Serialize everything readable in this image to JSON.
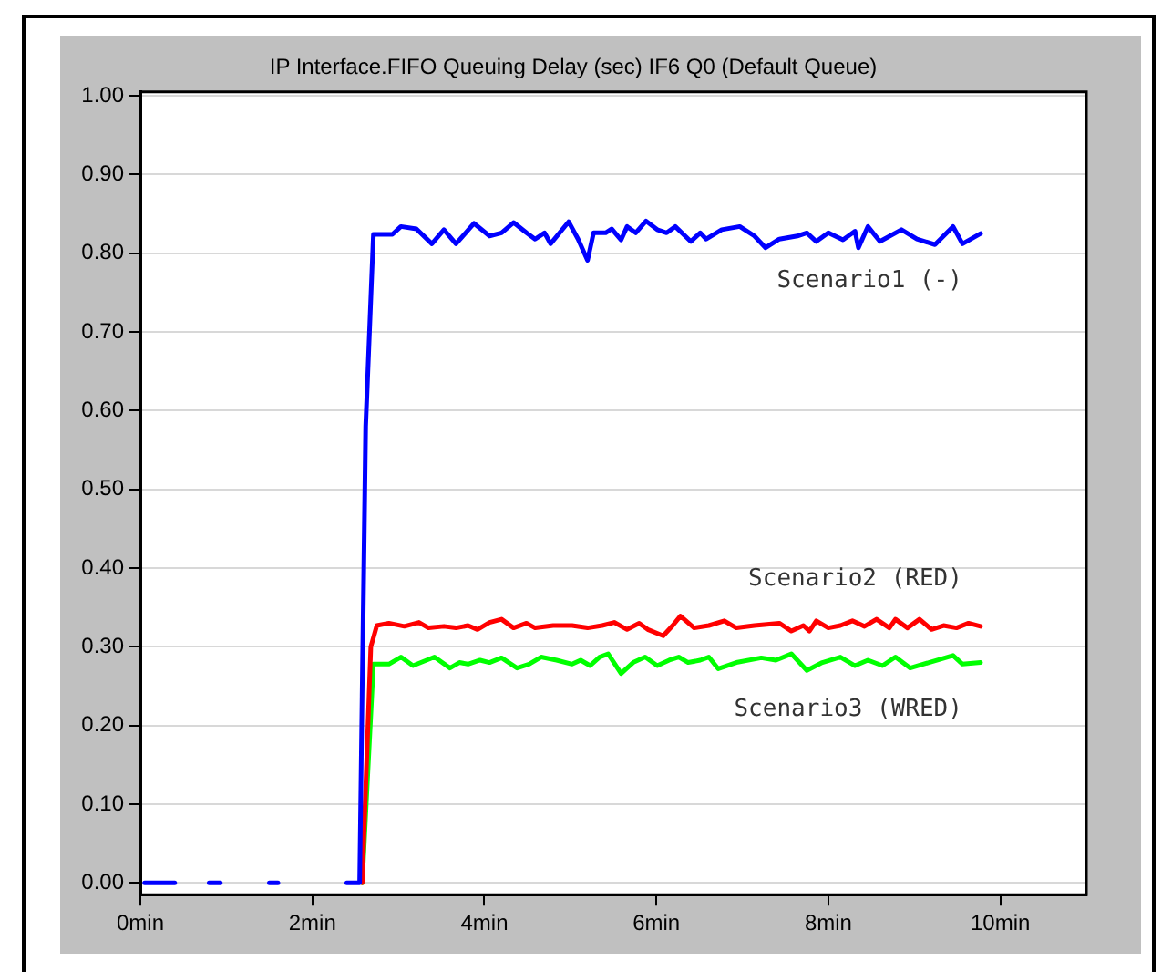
{
  "chart_data": {
    "type": "line",
    "title": "IP Interface.FIFO Queuing Delay (sec) IF6 Q0 (Default Queue)",
    "xlim": [
      0,
      11
    ],
    "xticks": [
      {
        "value": 0,
        "label": "0min"
      },
      {
        "value": 2,
        "label": "2min"
      },
      {
        "value": 4,
        "label": "4min"
      },
      {
        "value": 6,
        "label": "6min"
      },
      {
        "value": 8,
        "label": "8min"
      },
      {
        "value": 10,
        "label": "10min"
      }
    ],
    "ylim": [
      -0.015,
      1.005
    ],
    "yticks": [
      {
        "value": 0,
        "label": "0.00"
      },
      {
        "value": 0.1,
        "label": "0.10"
      },
      {
        "value": 0.2,
        "label": "0.20"
      },
      {
        "value": 0.3,
        "label": "0.30"
      },
      {
        "value": 0.4,
        "label": "0.40"
      },
      {
        "value": 0.5,
        "label": "0.50"
      },
      {
        "value": 0.6,
        "label": "0.60"
      },
      {
        "value": 0.7,
        "label": "0.70"
      },
      {
        "value": 0.8,
        "label": "0.80"
      },
      {
        "value": 0.9,
        "label": "0.90"
      },
      {
        "value": 1,
        "label": "1.00"
      }
    ],
    "grid": "y",
    "legend": false,
    "marker": "none",
    "line_style": "solid",
    "series": [
      {
        "name": "Scenario1 (-)",
        "color": "#0000ff",
        "x": [
          0.05,
          0.4,
          0.6,
          0.8,
          0.93,
          1.2,
          1.5,
          1.6,
          2.0,
          2.4,
          2.55,
          2.62,
          2.71,
          2.93,
          3.03,
          3.21,
          3.39,
          3.53,
          3.67,
          3.88,
          4.06,
          4.2,
          4.34,
          4.49,
          4.59,
          4.7,
          4.77,
          4.98,
          5.09,
          5.2,
          5.27,
          5.41,
          5.48,
          5.59,
          5.66,
          5.76,
          5.88,
          6.01,
          6.12,
          6.22,
          6.4,
          6.51,
          6.58,
          6.76,
          6.97,
          7.14,
          7.27,
          7.43,
          7.64,
          7.75,
          7.86,
          8.0,
          8.17,
          8.31,
          8.35,
          8.46,
          8.6,
          8.85,
          9.03,
          9.24,
          9.45,
          9.56,
          9.77
        ],
        "values": [
          0,
          0,
          null,
          0,
          0,
          null,
          0,
          0,
          null,
          0,
          0,
          0.58,
          0.824,
          0.824,
          0.834,
          0.831,
          0.812,
          0.83,
          0.812,
          0.838,
          0.822,
          0.826,
          0.839,
          0.826,
          0.818,
          0.826,
          0.812,
          0.84,
          0.818,
          0.791,
          0.826,
          0.826,
          0.831,
          0.817,
          0.834,
          0.826,
          0.841,
          0.83,
          0.826,
          0.834,
          0.815,
          0.826,
          0.818,
          0.83,
          0.834,
          0.822,
          0.807,
          0.818,
          0.822,
          0.826,
          0.815,
          0.826,
          0.817,
          0.828,
          0.807,
          0.834,
          0.815,
          0.83,
          0.818,
          0.811,
          0.834,
          0.812,
          0.825
        ]
      },
      {
        "name": "Scenario2 (RED)",
        "color": "#ff0000",
        "x": [
          2.58,
          2.68,
          2.75,
          2.89,
          3.07,
          3.24,
          3.35,
          3.53,
          3.67,
          3.81,
          3.92,
          4.06,
          4.2,
          4.34,
          4.49,
          4.59,
          4.8,
          5.02,
          5.2,
          5.37,
          5.51,
          5.66,
          5.8,
          5.9,
          6.08,
          6.19,
          6.28,
          6.44,
          6.61,
          6.79,
          6.93,
          7.14,
          7.43,
          7.57,
          7.71,
          7.78,
          7.86,
          8.0,
          8.14,
          8.28,
          8.42,
          8.56,
          8.71,
          8.78,
          8.92,
          9.06,
          9.2,
          9.34,
          9.49,
          9.63,
          9.77
        ],
        "values": [
          0,
          0.3,
          0.327,
          0.33,
          0.326,
          0.331,
          0.324,
          0.326,
          0.324,
          0.327,
          0.322,
          0.331,
          0.335,
          0.324,
          0.33,
          0.324,
          0.327,
          0.327,
          0.324,
          0.327,
          0.331,
          0.322,
          0.33,
          0.322,
          0.314,
          0.327,
          0.339,
          0.324,
          0.327,
          0.333,
          0.324,
          0.327,
          0.33,
          0.32,
          0.327,
          0.32,
          0.333,
          0.324,
          0.327,
          0.333,
          0.326,
          0.335,
          0.324,
          0.335,
          0.324,
          0.335,
          0.322,
          0.327,
          0.324,
          0.33,
          0.326
        ]
      },
      {
        "name": "Scenario3 (WRED)",
        "color": "#00ff00",
        "x": [
          2.58,
          2.71,
          2.89,
          3.03,
          3.17,
          3.42,
          3.6,
          3.71,
          3.81,
          3.95,
          4.06,
          4.2,
          4.38,
          4.52,
          4.66,
          4.84,
          5.02,
          5.12,
          5.23,
          5.34,
          5.44,
          5.59,
          5.73,
          5.87,
          6.01,
          6.15,
          6.26,
          6.37,
          6.51,
          6.61,
          6.72,
          6.93,
          7.22,
          7.39,
          7.57,
          7.75,
          7.93,
          8.14,
          8.31,
          8.46,
          8.63,
          8.78,
          8.95,
          9.17,
          9.45,
          9.56,
          9.77
        ],
        "values": [
          0,
          0.278,
          0.278,
          0.287,
          0.276,
          0.287,
          0.273,
          0.28,
          0.278,
          0.283,
          0.28,
          0.286,
          0.273,
          0.278,
          0.287,
          0.283,
          0.278,
          0.283,
          0.276,
          0.287,
          0.291,
          0.266,
          0.28,
          0.287,
          0.276,
          0.283,
          0.287,
          0.28,
          0.283,
          0.287,
          0.272,
          0.28,
          0.286,
          0.283,
          0.291,
          0.27,
          0.28,
          0.287,
          0.276,
          0.283,
          0.276,
          0.287,
          0.273,
          0.28,
          0.289,
          0.278,
          0.28
        ]
      }
    ]
  }
}
